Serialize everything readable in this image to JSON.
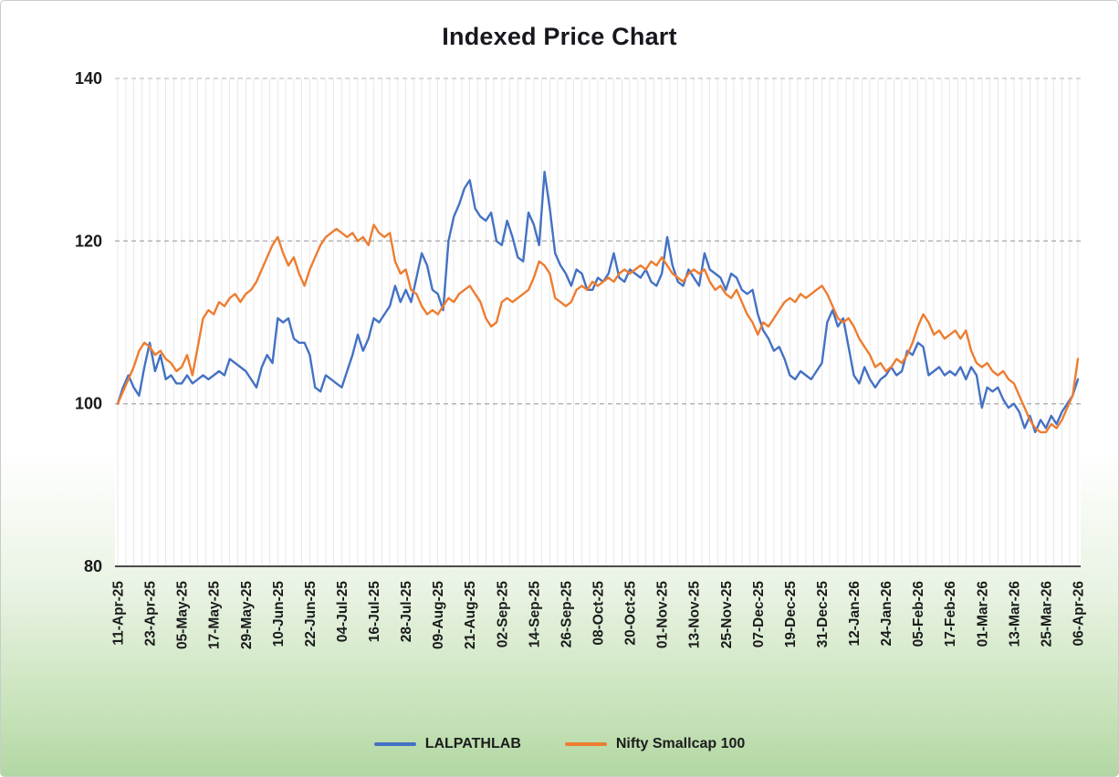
{
  "page": {
    "title": "Indexed Price Chart"
  },
  "legend": {
    "items": [
      {
        "label": "LALPATHLAB",
        "color": "#4472c4"
      },
      {
        "label": "Nifty Smallcap 100",
        "color": "#ed7d31"
      }
    ]
  },
  "colors": {
    "series_blue": "#4472c4",
    "series_orange": "#ed7d31",
    "background_top": "#ffffff",
    "background_bottom": "#b2d7a3",
    "axis_line": "#4a4a4a",
    "gridline_vertical": "#e9e9e9",
    "gridline_horizontal_dashed": "#b5b5b5"
  },
  "chart_data": {
    "type": "line",
    "title": "Indexed Price Chart",
    "xlabel": "",
    "ylabel": "",
    "ylim": [
      80,
      140
    ],
    "yticks": [
      140,
      120,
      100,
      80
    ],
    "legend_position": "bottom",
    "grid": {
      "vertical_every_days": 3,
      "horizontal_dashed_at": [
        140,
        120,
        100
      ]
    },
    "x_tick_interval_days": 12,
    "sample_interval_days": 2,
    "x_tick_labels": [
      "11-Apr-25",
      "23-Apr-25",
      "05-May-25",
      "17-May-25",
      "29-May-25",
      "10-Jun-25",
      "22-Jun-25",
      "04-Jul-25",
      "16-Jul-25",
      "28-Jul-25",
      "09-Aug-25",
      "21-Aug-25",
      "02-Sep-25",
      "14-Sep-25",
      "26-Sep-25",
      "08-Oct-25",
      "20-Oct-25",
      "01-Nov-25",
      "13-Nov-25",
      "25-Nov-25",
      "07-Dec-25",
      "19-Dec-25",
      "31-Dec-25",
      "12-Jan-26",
      "24-Jan-26",
      "05-Feb-26",
      "17-Feb-26",
      "01-Mar-26",
      "13-Mar-26",
      "25-Mar-26",
      "06-Apr-26"
    ],
    "series": [
      {
        "name": "LALPATHLAB",
        "color": "#4472c4",
        "values": [
          100,
          102,
          103.5,
          102,
          101,
          104.5,
          107.5,
          104,
          106,
          103,
          103.5,
          102.5,
          102.5,
          103.5,
          102.5,
          103,
          103.5,
          103,
          103.5,
          104,
          103.5,
          105.5,
          105,
          104.5,
          104,
          103,
          102,
          104.5,
          106,
          105,
          110.5,
          110,
          110.5,
          108,
          107.5,
          107.5,
          106,
          102,
          101.5,
          103.5,
          103,
          102.5,
          102,
          104,
          106,
          108.5,
          106.5,
          108,
          110.5,
          110,
          111,
          112,
          114.5,
          112.5,
          114,
          112.5,
          115.5,
          118.5,
          117,
          114,
          113.5,
          111.5,
          120,
          123,
          124.5,
          126.5,
          127.5,
          124,
          123,
          122.5,
          123.5,
          120,
          119.5,
          122.5,
          120.5,
          118,
          117.5,
          123.5,
          122,
          119.5,
          128.5,
          124,
          118.5,
          117,
          116,
          114.5,
          116.5,
          116,
          114,
          114,
          115.5,
          115,
          116,
          118.5,
          115.5,
          115,
          116.5,
          116,
          115.5,
          116.5,
          115,
          114.5,
          116,
          120.5,
          117,
          115,
          114.5,
          116.5,
          115.5,
          114.5,
          118.5,
          116.5,
          116,
          115.5,
          114,
          116,
          115.5,
          114,
          113.5,
          114,
          111,
          109,
          108,
          106.5,
          107,
          105.5,
          103.5,
          103,
          104,
          103.5,
          103,
          104,
          105,
          110,
          111.5,
          109.5,
          110.5,
          107,
          103.5,
          102.5,
          104.5,
          103,
          102,
          103,
          103.5,
          104.5,
          103.5,
          104,
          106.5,
          106,
          107.5,
          107,
          103.5,
          104,
          104.5,
          103.5,
          104,
          103.5,
          104.5,
          103,
          104.5,
          103.5,
          99.5,
          102,
          101.5,
          102,
          100.5,
          99.5,
          100,
          99,
          97,
          98.5,
          96.5,
          98,
          97,
          98.5,
          97.5,
          99,
          100,
          101,
          103
        ]
      },
      {
        "name": "Nifty Smallcap 100",
        "color": "#ed7d31",
        "values": [
          100,
          101.5,
          103,
          104.5,
          106.5,
          107.5,
          107,
          106,
          106.5,
          105.5,
          105,
          104,
          104.5,
          106,
          103.5,
          107,
          110.5,
          111.5,
          111,
          112.5,
          112,
          113,
          113.5,
          112.5,
          113.5,
          114,
          115,
          116.5,
          118,
          119.5,
          120.5,
          118.5,
          117,
          118,
          116,
          114.5,
          116.5,
          118,
          119.5,
          120.5,
          121,
          121.5,
          121,
          120.5,
          121,
          120,
          120.5,
          119.5,
          122,
          121,
          120.5,
          121,
          117.5,
          116,
          116.5,
          114,
          113.5,
          112,
          111,
          111.5,
          111,
          112,
          113,
          112.5,
          113.5,
          114,
          114.5,
          113.5,
          112.5,
          110.5,
          109.5,
          110,
          112.5,
          113,
          112.5,
          113,
          113.5,
          114,
          115.5,
          117.5,
          117,
          116,
          113,
          112.5,
          112,
          112.5,
          114,
          114.5,
          114,
          115,
          114.5,
          115,
          115.5,
          115,
          116,
          116.5,
          116,
          116.5,
          117,
          116.5,
          117.5,
          117,
          118,
          117,
          116,
          115.5,
          115,
          116,
          116.5,
          116,
          116.5,
          115,
          114,
          114.5,
          113.5,
          113,
          114,
          112.5,
          111,
          110,
          108.5,
          110,
          109.5,
          110.5,
          111.5,
          112.5,
          113,
          112.5,
          113.5,
          113,
          113.5,
          114,
          114.5,
          113.5,
          112,
          110.5,
          110,
          110.5,
          109.5,
          108,
          107,
          106,
          104.5,
          105,
          104,
          104.5,
          105.5,
          105,
          106,
          107.5,
          109.5,
          111,
          110,
          108.5,
          109,
          108,
          108.5,
          109,
          108,
          109,
          106.5,
          105,
          104.5,
          105,
          104,
          103.5,
          104,
          103,
          102.5,
          101,
          99.5,
          98,
          97,
          96.5,
          96.5,
          97.5,
          97,
          98,
          99.5,
          101,
          105.5
        ]
      }
    ]
  }
}
